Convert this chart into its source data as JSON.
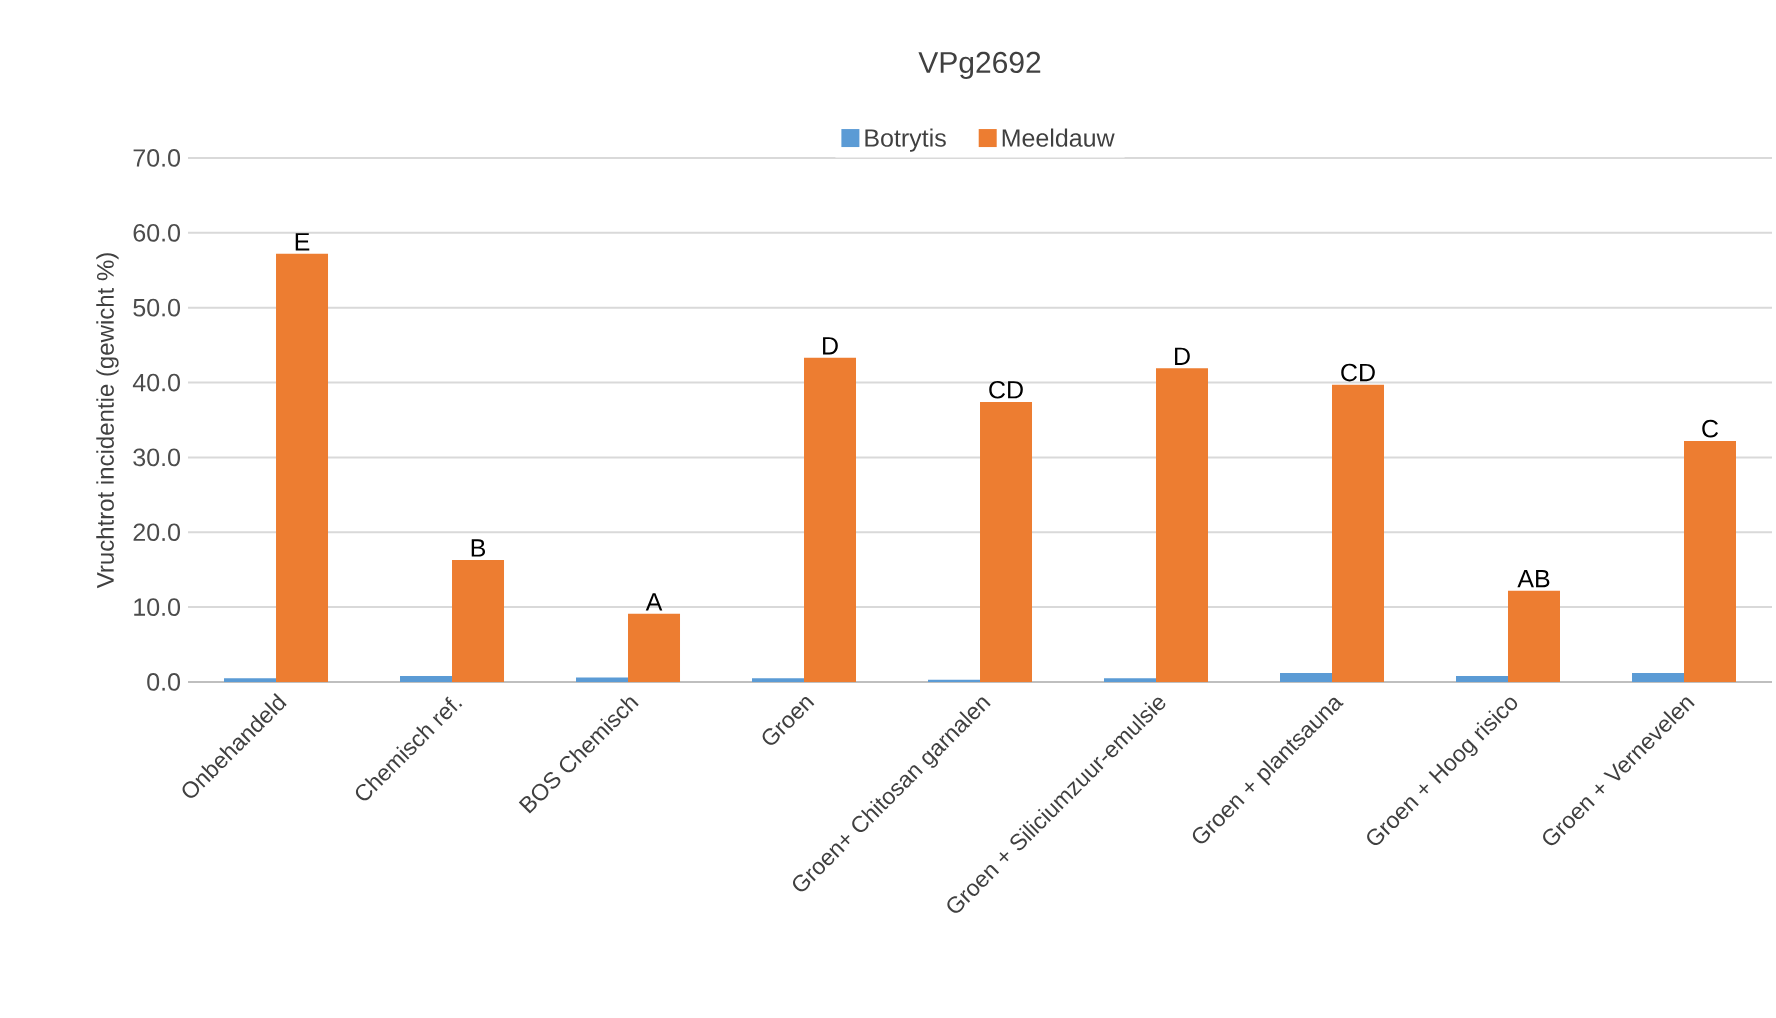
{
  "chart_data": {
    "type": "bar",
    "title": "VPg2692",
    "ylabel": "Vruchtrot incidentie (gewicht %)",
    "categories": [
      "Onbehandeld",
      "Chemisch ref.",
      "BOS Chemisch",
      "Groen",
      "Groen+ Chitosan garnalen",
      "Groen + Siliciumzuur-emulsie",
      "Groen + plantsauna",
      "Groen + Hoog risico",
      "Groen + Vernevelen"
    ],
    "series": [
      {
        "name": "Botrytis",
        "color": "#5b9bd5",
        "values": [
          0.5,
          0.8,
          0.6,
          0.5,
          0.3,
          0.5,
          1.2,
          0.8,
          1.2
        ]
      },
      {
        "name": "Meeldauw",
        "color": "#ed7d31",
        "values": [
          57.2,
          16.3,
          9.1,
          43.3,
          37.4,
          41.9,
          39.7,
          12.2,
          32.2
        ]
      }
    ],
    "ylim": [
      0,
      70
    ],
    "yticks": [
      {
        "value": 0,
        "label": "0.0"
      },
      {
        "value": 10,
        "label": "10.0"
      },
      {
        "value": 20,
        "label": "20.0"
      },
      {
        "value": 30,
        "label": "30.0"
      },
      {
        "value": 40,
        "label": "40.0"
      },
      {
        "value": 50,
        "label": "50.0"
      },
      {
        "value": 60,
        "label": "60.0"
      },
      {
        "value": 70,
        "label": "70.0"
      }
    ],
    "grid": "y",
    "legend": "top",
    "annotations": [
      {
        "text": "E",
        "x": "Onbehandeld",
        "y": 57.2
      },
      {
        "text": "B",
        "x": "Chemisch ref.",
        "y": 16.3
      },
      {
        "text": "A",
        "x": "BOS Chemisch",
        "y": 9.1
      },
      {
        "text": "D",
        "x": "Groen",
        "y": 43.3
      },
      {
        "text": "CD",
        "x": "Groen+ Chitosan garnalen",
        "y": 37.4
      },
      {
        "text": "D",
        "x": "Groen + Siliciumzuur-emulsie",
        "y": 41.9
      },
      {
        "text": "CD",
        "x": "Groen + plantsauna",
        "y": 39.7
      },
      {
        "text": "AB",
        "x": "Groen + Hoog risico",
        "y": 12.2
      },
      {
        "text": "C",
        "x": "Groen + Vernevelen",
        "y": 32.2
      }
    ]
  }
}
